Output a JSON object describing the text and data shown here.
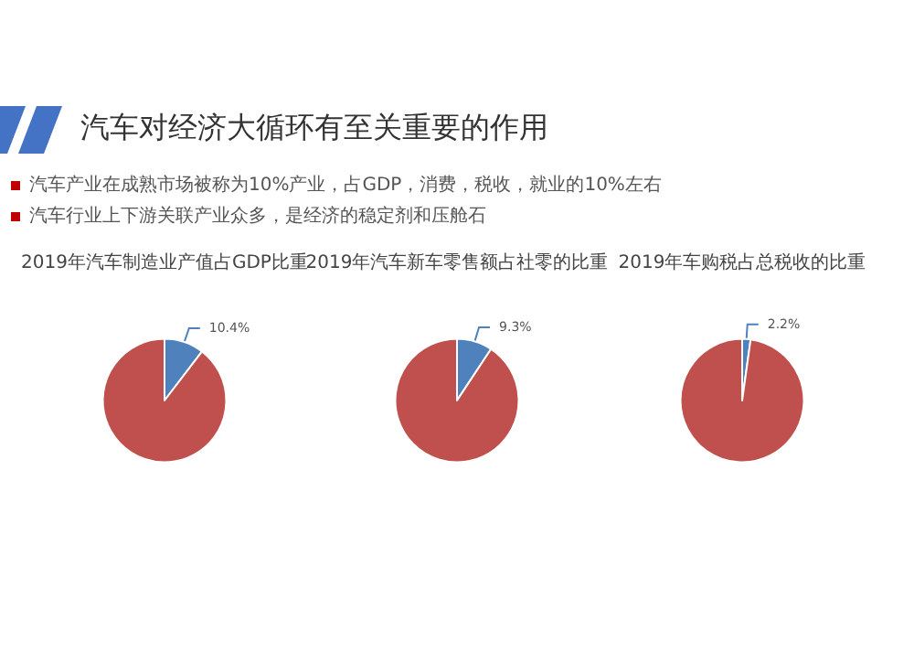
{
  "chart_data": [
    {
      "type": "other",
      "title": "汽车对经济大循环有至关重要的作用",
      "annotations": [
        "汽车产业在成熟市场被称为10%产业，占GDP，消费，税收，就业的10%左右",
        "汽车行业上下游关联产业众多，是经济的稳定剂和压舱石"
      ]
    },
    {
      "type": "pie",
      "title": "2019年汽车制造业产值占GDP比重",
      "categories": [
        null,
        null
      ],
      "values": [
        10.4,
        89.6
      ],
      "colors": [
        "#4f81bd",
        "#c0504d"
      ],
      "value_labels": [
        "10.4%",
        null
      ]
    },
    {
      "type": "pie",
      "title": "2019年汽车新车零售额占社零的比重",
      "categories": [
        null,
        null
      ],
      "values": [
        9.3,
        90.7
      ],
      "colors": [
        "#4f81bd",
        "#c0504d"
      ],
      "value_labels": [
        "9.3%",
        null
      ]
    },
    {
      "type": "pie",
      "title": "2019年车购税占总税收的比重",
      "categories": [
        null,
        null
      ],
      "values": [
        2.2,
        97.8
      ],
      "colors": [
        "#4f81bd",
        "#c0504d"
      ],
      "value_labels": [
        "2.2%",
        null
      ]
    }
  ]
}
